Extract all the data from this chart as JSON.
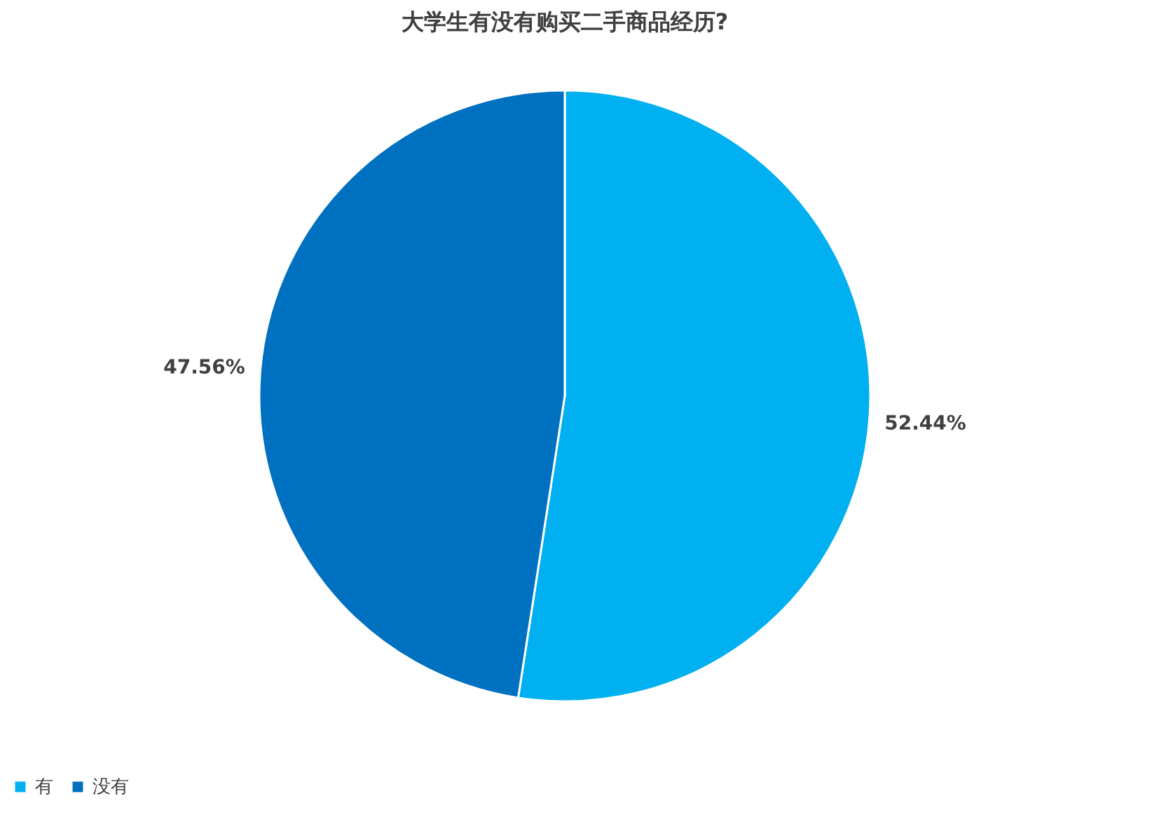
{
  "chart_data": {
    "type": "pie",
    "title": "大学生有没有购买二手商品经历?",
    "categories": [
      "有",
      "没有"
    ],
    "values": [
      52.44,
      47.56
    ],
    "colors": [
      "#00b0f0",
      "#0070c0"
    ],
    "value_labels": [
      "52.44%",
      "47.56%"
    ],
    "legend": "bottom"
  }
}
